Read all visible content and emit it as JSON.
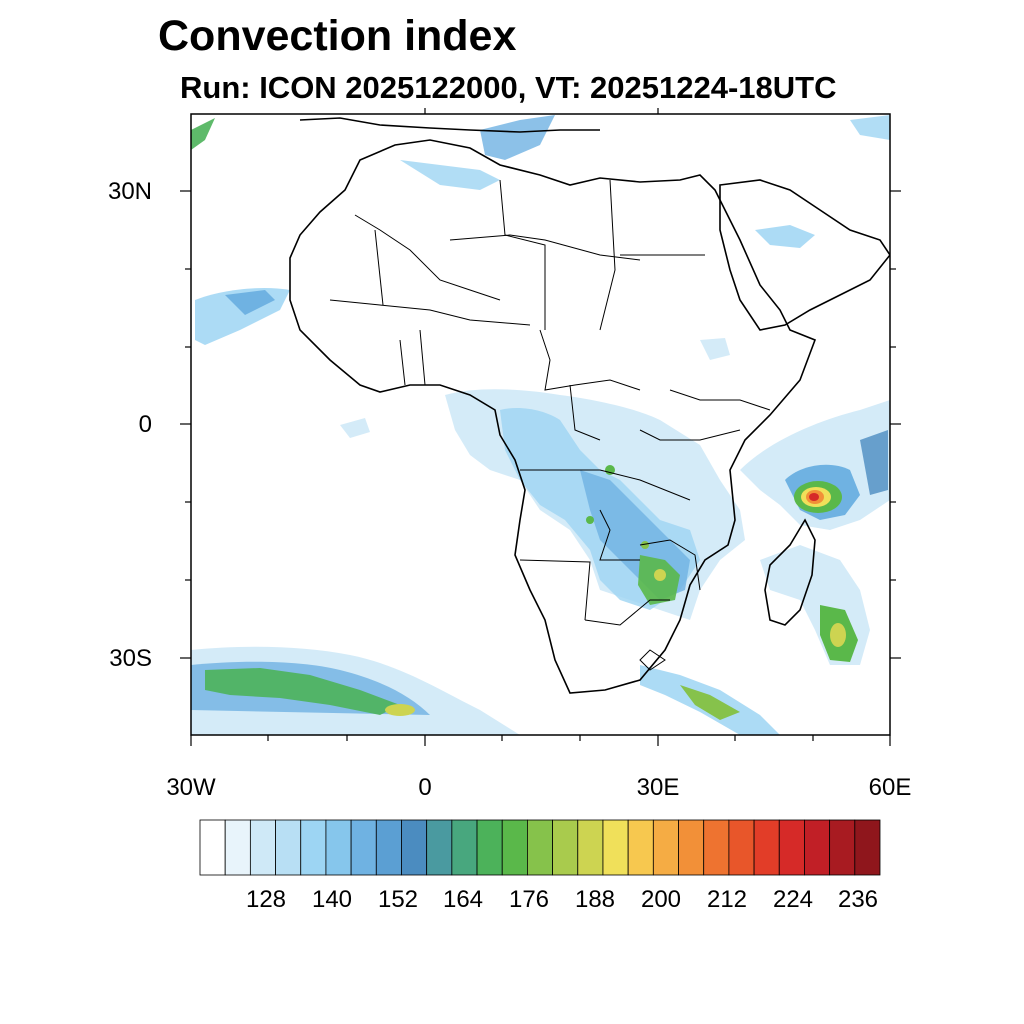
{
  "title": "Convection index",
  "subtitle": "Run: ICON 2025122000,  VT: 20251224-18UTC",
  "map": {
    "lat_range": [
      -40,
      40
    ],
    "lon_range": [
      -30,
      60
    ],
    "lat_ticks": [
      "30N",
      "0",
      "30S"
    ],
    "lon_ticks": [
      "30W",
      "0",
      "30E",
      "60E"
    ]
  },
  "colorbar": {
    "labels": [
      "128",
      "140",
      "152",
      "164",
      "176",
      "188",
      "200",
      "212",
      "224",
      "236"
    ],
    "colors": [
      "#ffffff",
      "#e8f4fb",
      "#cfe9f7",
      "#b8dff4",
      "#9dd5f3",
      "#86c6ec",
      "#6fb2e2",
      "#5b9fd3",
      "#4b8cc0",
      "#4a9aa0",
      "#48a77e",
      "#4cb25a",
      "#5ab84a",
      "#86c24b",
      "#a9cb4d",
      "#cdd451",
      "#f0e05a",
      "#f7c84f",
      "#f5ac44",
      "#f29038",
      "#ee7330",
      "#e8562a",
      "#e23d28",
      "#d62a28",
      "#c11f26",
      "#a81b21",
      "#8f161c"
    ]
  }
}
